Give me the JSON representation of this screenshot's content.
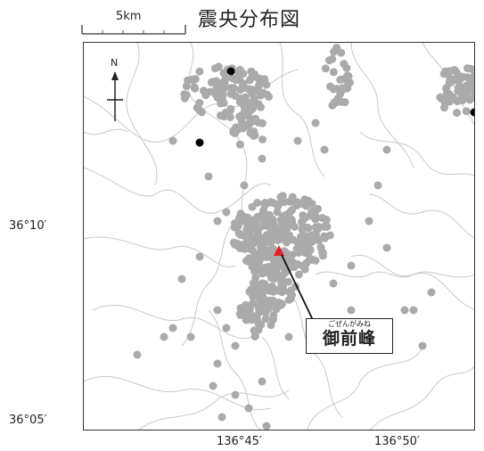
{
  "title": "震央分布図",
  "scale": {
    "label": "5km"
  },
  "north_label": "N",
  "lat_labels": [
    "36°10′",
    "36°05′"
  ],
  "lon_labels": [
    "136°45′",
    "136°50′"
  ],
  "summit": {
    "ruby": "ごぜんがみね",
    "name": "御前峰"
  },
  "colors": {
    "epicenter": "#aaaaaa",
    "large_event": "#000000",
    "summit": "#e31e24",
    "contour": "#c8c8c8",
    "frame": "#333333"
  }
}
